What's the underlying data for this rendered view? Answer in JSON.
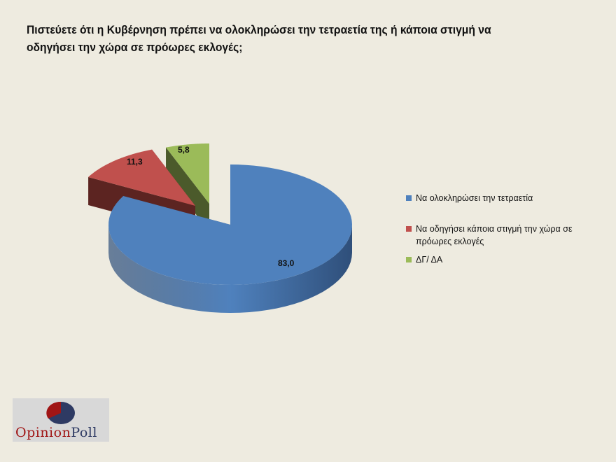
{
  "title": "Πιστεύετε ότι η Κυβέρνηση πρέπει να ολοκληρώσει την τετραετία της ή κάποια στιγμή να οδηγήσει την χώρα σε πρόωρες εκλογές;",
  "chart_data": {
    "type": "pie",
    "style": "3d-exploded",
    "series": [
      {
        "name": "Να ολοκληρώσει την τετραετία",
        "value": 83.0,
        "label": "83,0",
        "color": "#4f81bd"
      },
      {
        "name": "Να οδηγήσει κάποια στιγμή την χώρα σε πρόωρες εκλογές",
        "value": 11.3,
        "label": "11,3",
        "color": "#c0504d"
      },
      {
        "name": "ΔΓ/ ΔΑ",
        "value": 5.8,
        "label": "5,8",
        "color": "#9bbb59"
      }
    ],
    "legend_position": "right"
  },
  "logo": {
    "text_a": "Opinion",
    "text_b": "Poll"
  }
}
